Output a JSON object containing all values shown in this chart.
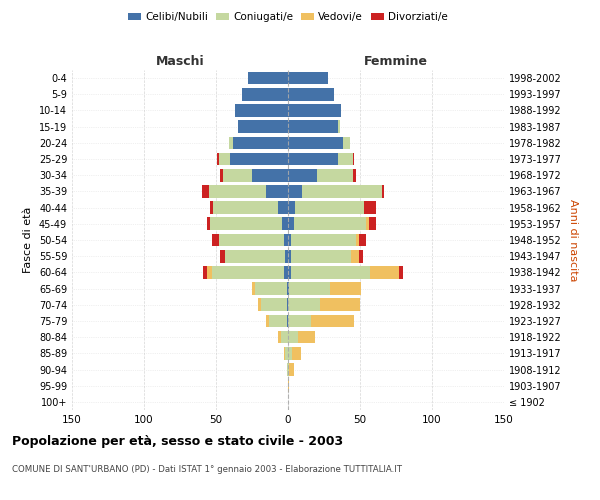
{
  "age_groups": [
    "100+",
    "95-99",
    "90-94",
    "85-89",
    "80-84",
    "75-79",
    "70-74",
    "65-69",
    "60-64",
    "55-59",
    "50-54",
    "45-49",
    "40-44",
    "35-39",
    "30-34",
    "25-29",
    "20-24",
    "15-19",
    "10-14",
    "5-9",
    "0-4"
  ],
  "birth_years": [
    "≤ 1902",
    "1903-1907",
    "1908-1912",
    "1913-1917",
    "1918-1922",
    "1923-1927",
    "1928-1932",
    "1933-1937",
    "1938-1942",
    "1943-1947",
    "1948-1952",
    "1953-1957",
    "1958-1962",
    "1963-1967",
    "1968-1972",
    "1973-1977",
    "1978-1982",
    "1983-1987",
    "1988-1992",
    "1993-1997",
    "1998-2002"
  ],
  "males": {
    "celibi": [
      0,
      0,
      0,
      0,
      0,
      1,
      1,
      1,
      3,
      2,
      3,
      4,
      7,
      15,
      25,
      40,
      38,
      35,
      37,
      32,
      28
    ],
    "coniugati": [
      0,
      0,
      1,
      2,
      5,
      12,
      18,
      22,
      50,
      42,
      45,
      50,
      45,
      40,
      20,
      8,
      3,
      0,
      0,
      0,
      0
    ],
    "vedovi": [
      0,
      0,
      0,
      1,
      2,
      2,
      2,
      2,
      3,
      0,
      0,
      0,
      0,
      0,
      0,
      0,
      0,
      0,
      0,
      0,
      0
    ],
    "divorziati": [
      0,
      0,
      0,
      0,
      0,
      0,
      0,
      0,
      3,
      3,
      5,
      2,
      2,
      5,
      2,
      1,
      0,
      0,
      0,
      0,
      0
    ]
  },
  "females": {
    "nubili": [
      0,
      0,
      0,
      0,
      0,
      0,
      0,
      1,
      2,
      2,
      2,
      4,
      5,
      10,
      20,
      35,
      38,
      35,
      37,
      32,
      28
    ],
    "coniugate": [
      0,
      0,
      1,
      3,
      7,
      16,
      22,
      28,
      55,
      42,
      45,
      50,
      48,
      55,
      25,
      10,
      5,
      1,
      0,
      0,
      0
    ],
    "vedove": [
      0,
      1,
      3,
      6,
      12,
      30,
      28,
      22,
      20,
      5,
      2,
      2,
      0,
      0,
      0,
      0,
      0,
      0,
      0,
      0,
      0
    ],
    "divorziate": [
      0,
      0,
      0,
      0,
      0,
      0,
      0,
      0,
      3,
      3,
      5,
      5,
      8,
      2,
      2,
      1,
      0,
      0,
      0,
      0,
      0
    ]
  },
  "colors": {
    "celibi_nubili": "#4472a8",
    "coniugati": "#c5d8a0",
    "vedovi": "#f0c060",
    "divorziati": "#cc2222"
  },
  "title": "Popolazione per età, sesso e stato civile - 2003",
  "subtitle": "COMUNE DI SANT'URBANO (PD) - Dati ISTAT 1° gennaio 2003 - Elaborazione TUTTITALIA.IT",
  "xlabel_left": "Maschi",
  "xlabel_right": "Femmine",
  "ylabel_left": "Fasce di età",
  "ylabel_right": "Anni di nascita",
  "xlim": 150,
  "xticks": [
    -150,
    -100,
    -50,
    0,
    50,
    100,
    150
  ],
  "xticklabels": [
    "150",
    "100",
    "50",
    "0",
    "50",
    "100",
    "150"
  ],
  "legend_labels": [
    "Celibi/Nubili",
    "Coniugati/e",
    "Vedovi/e",
    "Divorziati/e"
  ],
  "background_color": "#ffffff",
  "grid_color": "#cccccc"
}
